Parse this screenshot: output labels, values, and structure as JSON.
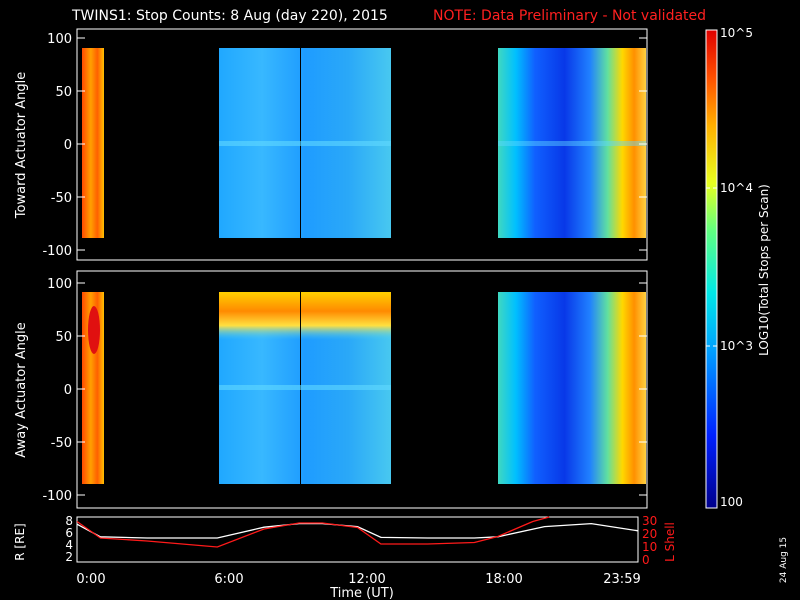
{
  "title": "TWINS1: Stop Counts:  8 Aug (day 220), 2015",
  "note": "NOTE: Data Preliminary - Not validated",
  "colors": {
    "note": "#ff2020",
    "axis": "#ffffff",
    "lshell": "#ff1a1a",
    "radius": "#ffffff",
    "background": "#000000"
  },
  "footer": "24 Aug 15",
  "chart_data": [
    {
      "type": "heatmap",
      "panel": "toward",
      "ylabel": "Toward Actuator Angle",
      "ylim": [
        -110,
        110
      ],
      "yticks": [
        "100",
        "50",
        "0",
        "-50",
        "-100"
      ],
      "xlim_hours": [
        0,
        24
      ],
      "data_coverage_hours": [
        [
          0.0,
          0.6
        ],
        [
          6.0,
          12.2
        ],
        [
          18.0,
          24.0
        ]
      ],
      "description": "Mostly low counts (~10^3) during 6:00-12:00, high counts near 0:00 and late day"
    },
    {
      "type": "heatmap",
      "panel": "away",
      "ylabel": "Away Actuator Angle",
      "ylim": [
        -110,
        110
      ],
      "yticks": [
        "100",
        "50",
        "0",
        "-50",
        "-100"
      ],
      "xlim_hours": [
        0,
        24
      ],
      "data_coverage_hours": [
        [
          0.0,
          0.6
        ],
        [
          6.0,
          12.2
        ],
        [
          18.0,
          24.0
        ]
      ]
    },
    {
      "type": "line",
      "panel": "orbit",
      "ylabel": "R [RE]",
      "ylabel2": "L Shell",
      "xlabel": "Time (UT)",
      "xticks": [
        "0:00",
        "6:00",
        "12:00",
        "18:00",
        "23:59"
      ],
      "yticks_left": [
        "8",
        "6",
        "4",
        "2"
      ],
      "yticks_right": [
        "30",
        "20",
        "10",
        "0"
      ],
      "ylim": [
        1,
        8.5
      ],
      "ylim2": [
        0,
        30
      ],
      "series": [
        {
          "axis": "left",
          "x": [
            0,
            1,
            3,
            6,
            8,
            9.5,
            10.5,
            12,
            13,
            15,
            17,
            18,
            20,
            22,
            24
          ],
          "y": [
            7.3,
            5.2,
            5.0,
            5.0,
            6.8,
            7.4,
            7.4,
            6.9,
            5.1,
            5.0,
            5.0,
            5.2,
            6.9,
            7.4,
            6.2
          ]
        },
        {
          "axis": "right",
          "x": [
            0,
            1,
            3,
            6,
            8,
            9.5,
            10.5,
            12,
            13,
            15,
            17,
            18,
            19.5,
            20.2
          ],
          "y": [
            27,
            16,
            14,
            10,
            22,
            26,
            26,
            23,
            12,
            12,
            13,
            17,
            27,
            30
          ]
        }
      ]
    },
    {
      "type": "heatmap-colorbar",
      "label": "LOG10(Total Stops per Scan)",
      "ticks": [
        "100",
        "10^3",
        "10^4",
        "10^5"
      ],
      "range": [
        100,
        100000
      ],
      "scale": "log"
    }
  ]
}
